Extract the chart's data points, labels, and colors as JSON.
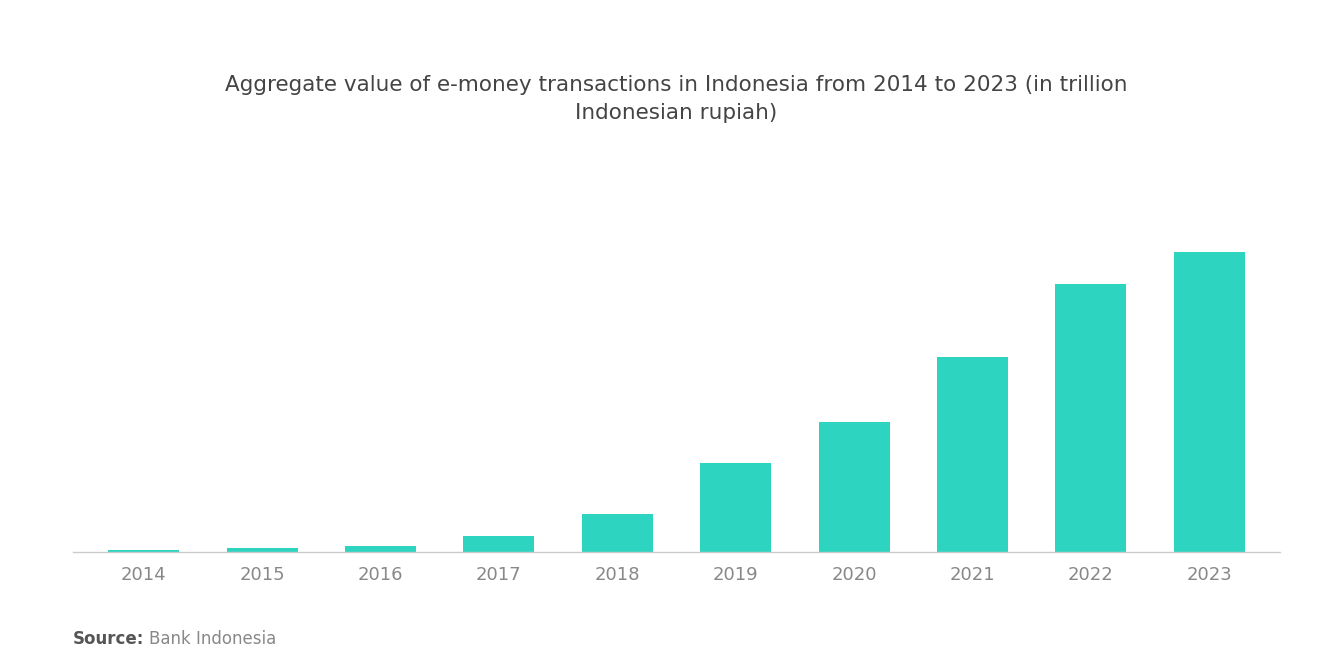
{
  "title": "Aggregate value of e-money transactions in Indonesia from 2014 to 2023 (in trillion\nIndonesian rupiah)",
  "categories": [
    "2014",
    "2015",
    "2016",
    "2017",
    "2018",
    "2019",
    "2020",
    "2021",
    "2022",
    "2023"
  ],
  "values": [
    0.3,
    0.5,
    0.7,
    2.0,
    4.7,
    11.0,
    16.0,
    24.0,
    33.0,
    37.0
  ],
  "bar_color": "#2dd4bf",
  "background_color": "#ffffff",
  "source_bold": "Source:",
  "source_text": "Bank Indonesia",
  "title_fontsize": 15.5,
  "tick_fontsize": 13,
  "source_fontsize": 12,
  "title_color": "#444444",
  "tick_color": "#888888",
  "source_bold_color": "#555555",
  "source_text_color": "#888888",
  "ylim_max": 50,
  "bar_width": 0.6
}
